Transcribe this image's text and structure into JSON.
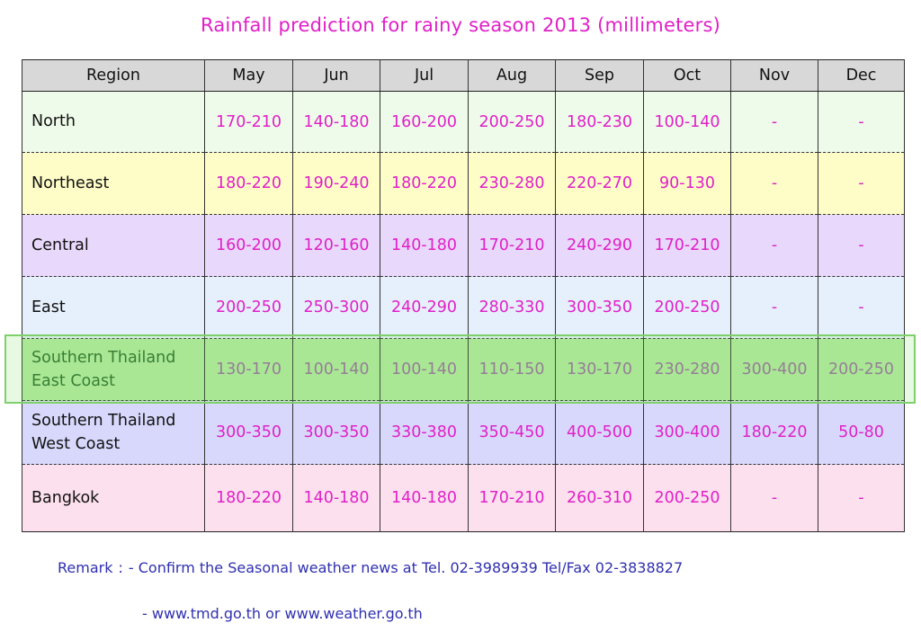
{
  "title": "Rainfall prediction for rainy season 2013 (millimeters)",
  "table": {
    "header": [
      "Region",
      "May",
      "Jun",
      "Jul",
      "Aug",
      "Sep",
      "Oct",
      "Nov",
      "Dec"
    ],
    "rows": [
      {
        "region": [
          "North"
        ],
        "values": [
          "170-210",
          "140-180",
          "160-200",
          "200-250",
          "180-230",
          "100-140",
          "-",
          "-"
        ]
      },
      {
        "region": [
          "Northeast"
        ],
        "values": [
          "180-220",
          "190-240",
          "180-220",
          "230-280",
          "220-270",
          "90-130",
          "-",
          "-"
        ]
      },
      {
        "region": [
          "Central"
        ],
        "values": [
          "160-200",
          "120-160",
          "140-180",
          "170-210",
          "240-290",
          "170-210",
          "-",
          "-"
        ]
      },
      {
        "region": [
          "East"
        ],
        "values": [
          "200-250",
          "250-300",
          "240-290",
          "280-330",
          "300-350",
          "200-250",
          "-",
          "-"
        ]
      },
      {
        "region": [
          "Southern Thailand",
          "East Coast"
        ],
        "values": [
          "130-170",
          "100-140",
          "100-140",
          "110-150",
          "130-170",
          "230-280",
          "300-400",
          "200-250"
        ]
      },
      {
        "region": [
          "Southern Thailand",
          "West Coast"
        ],
        "values": [
          "300-350",
          "300-350",
          "330-380",
          "350-450",
          "400-500",
          "300-400",
          "180-220",
          "50-80"
        ]
      },
      {
        "region": [
          "Bangkok"
        ],
        "values": [
          "180-220",
          "140-180",
          "140-180",
          "170-210",
          "260-310",
          "200-250",
          "-",
          "-"
        ]
      }
    ]
  },
  "remark": {
    "label": "Remark",
    "colon": ":",
    "line1": "-  Confirm the Seasonal  weather news at Tel. 02-3989939 Tel/Fax 02-3838827",
    "line2": "-  www.tmd.go.th or www.weather.go.th"
  },
  "colors": {
    "title": "#e020c8",
    "values": "#e020c8",
    "remark": "#3030b0",
    "highlight": "#7ed06a"
  }
}
